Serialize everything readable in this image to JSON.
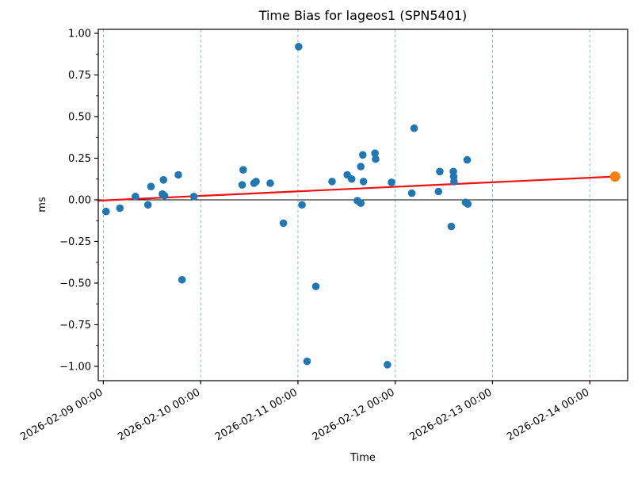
{
  "figure": {
    "title": "Time Bias for lageos1 (SPN5401)",
    "xlabel": "Time",
    "ylabel": "ms",
    "background": "#ffffff"
  },
  "chart_data": {
    "type": "scatter",
    "title": "Time Bias for lageos1 (SPN5401)",
    "xlabel": "Time",
    "ylabel": "ms",
    "x_axis": {
      "origin": "2026-02-09T00:00",
      "min": "2026-02-08T22:45",
      "max": "2026-02-14T09:20",
      "tick_labels": [
        "2026-02-09 00:00",
        "2026-02-10 00:00",
        "2026-02-11 00:00",
        "2026-02-12 00:00",
        "2026-02-13 00:00",
        "2026-02-14 00:00"
      ],
      "tick_days": [
        0,
        1,
        2,
        3,
        4,
        5
      ],
      "tick_rotation_deg": -30
    },
    "y_axis": {
      "min": -1.086,
      "max": 1.024,
      "tick_values": [
        1.0,
        0.75,
        0.5,
        0.25,
        0.0,
        -0.25,
        -0.5,
        -0.75,
        -1.0
      ],
      "tick_labels": [
        "1.00",
        "0.75",
        "0.50",
        "0.25",
        "0.00",
        "−0.25",
        "−0.50",
        "−0.75",
        "−1.00"
      ],
      "minor_tick_values": [
        0.875,
        0.625,
        0.375,
        0.125,
        -0.125,
        -0.375,
        -0.625,
        -0.875
      ]
    },
    "grid": {
      "axis": "x",
      "style": "dashed",
      "color": "#1f77b4",
      "opacity": 0.6
    },
    "zero_line": {
      "y": 0,
      "color": "#000000",
      "width": 1
    },
    "trend_line": {
      "name": "linear-fit",
      "color": "#ef1212",
      "width": 2.2,
      "x": [
        "2026-02-08T22:45",
        "2026-02-14T06:15"
      ],
      "y": [
        -0.005,
        0.14
      ]
    },
    "series": [
      {
        "name": "time-bias-observations",
        "color": "#1f77b4",
        "marker_radius": 4.8,
        "points": [
          [
            "2026-02-09T00:40",
            -0.07
          ],
          [
            "2026-02-09T04:05",
            -0.05
          ],
          [
            "2026-02-09T07:55",
            0.02
          ],
          [
            "2026-02-09T11:00",
            -0.03
          ],
          [
            "2026-02-09T11:45",
            0.08
          ],
          [
            "2026-02-09T14:35",
            0.035
          ],
          [
            "2026-02-09T14:50",
            0.12
          ],
          [
            "2026-02-09T15:05",
            0.025
          ],
          [
            "2026-02-09T18:30",
            0.15
          ],
          [
            "2026-02-09T19:25",
            -0.48
          ],
          [
            "2026-02-09T22:20",
            0.02
          ],
          [
            "2026-02-10T10:15",
            0.09
          ],
          [
            "2026-02-10T10:30",
            0.18
          ],
          [
            "2026-02-10T13:10",
            0.1
          ],
          [
            "2026-02-10T13:40",
            0.11
          ],
          [
            "2026-02-10T17:10",
            0.1
          ],
          [
            "2026-02-10T20:25",
            -0.14
          ],
          [
            "2026-02-11T00:10",
            0.92
          ],
          [
            "2026-02-11T01:00",
            -0.03
          ],
          [
            "2026-02-11T02:15",
            -0.97
          ],
          [
            "2026-02-11T04:25",
            -0.52
          ],
          [
            "2026-02-11T08:25",
            0.11
          ],
          [
            "2026-02-11T12:10",
            0.15
          ],
          [
            "2026-02-11T13:15",
            0.125
          ],
          [
            "2026-02-11T14:40",
            -0.005
          ],
          [
            "2026-02-11T15:30",
            -0.02
          ],
          [
            "2026-02-11T15:30",
            0.2
          ],
          [
            "2026-02-11T16:00",
            0.27
          ],
          [
            "2026-02-11T16:10",
            0.11
          ],
          [
            "2026-02-11T19:00",
            0.28
          ],
          [
            "2026-02-11T19:10",
            0.245
          ],
          [
            "2026-02-11T22:05",
            -0.99
          ],
          [
            "2026-02-11T23:05",
            0.105
          ],
          [
            "2026-02-12T04:05",
            0.04
          ],
          [
            "2026-02-12T04:40",
            0.43
          ],
          [
            "2026-02-12T10:40",
            0.05
          ],
          [
            "2026-02-12T11:00",
            0.17
          ],
          [
            "2026-02-12T13:50",
            -0.16
          ],
          [
            "2026-02-12T14:20",
            0.17
          ],
          [
            "2026-02-12T14:25",
            0.14
          ],
          [
            "2026-02-12T14:30",
            0.11
          ],
          [
            "2026-02-12T17:20",
            -0.015
          ],
          [
            "2026-02-12T17:45",
            0.24
          ],
          [
            "2026-02-12T17:55",
            -0.025
          ]
        ]
      },
      {
        "name": "predicted-endpoint",
        "color": "#ff7f0e",
        "marker_radius": 6.5,
        "points": [
          [
            "2026-02-14T06:15",
            0.14
          ]
        ]
      }
    ]
  }
}
